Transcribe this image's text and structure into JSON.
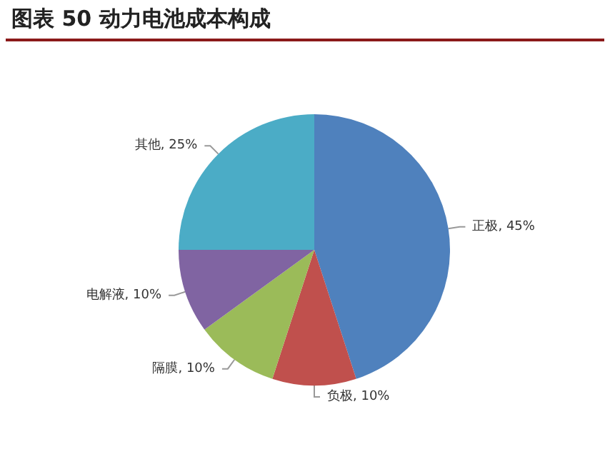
{
  "chart_data": {
    "type": "pie",
    "title": "图表 50 动力电池成本构成",
    "categories": [
      "正极",
      "负极",
      "隔膜",
      "电解液",
      "其他"
    ],
    "values": [
      45,
      10,
      10,
      10,
      25
    ],
    "value_labels": [
      "45%",
      "10%",
      "10%",
      "10%",
      "25%"
    ],
    "colors": [
      "#4f81bd",
      "#c0504d",
      "#9bbb59",
      "#8064a2",
      "#4bacc6"
    ]
  }
}
